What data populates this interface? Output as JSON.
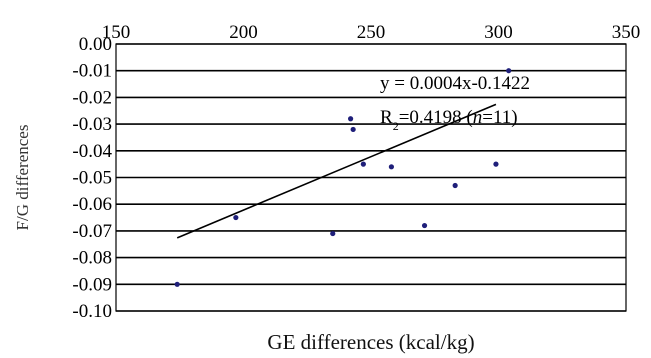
{
  "chart_data": {
    "type": "scatter",
    "xlabel": "GE differences (kcal/kg)",
    "ylabel": "F/G differences",
    "xlim": [
      150,
      350
    ],
    "ylim": [
      -0.1,
      0.0
    ],
    "x_ticks": [
      "150",
      "200",
      "250",
      "300",
      "350"
    ],
    "y_ticks": [
      "0.00",
      "-0.01",
      "-0.02",
      "-0.03",
      "-0.04",
      "-0.05",
      "-0.06",
      "-0.07",
      "-0.08",
      "-0.09",
      "-0.10"
    ],
    "grid": "horizontal",
    "x_axis_position": "top",
    "marker_color": "#1f1f7a",
    "points": [
      {
        "x": 174,
        "y": -0.09
      },
      {
        "x": 197,
        "y": -0.065
      },
      {
        "x": 235,
        "y": -0.071
      },
      {
        "x": 242,
        "y": -0.028
      },
      {
        "x": 243,
        "y": -0.032
      },
      {
        "x": 247,
        "y": -0.045
      },
      {
        "x": 258,
        "y": -0.046
      },
      {
        "x": 271,
        "y": -0.068
      },
      {
        "x": 283,
        "y": -0.053
      },
      {
        "x": 299,
        "y": -0.045
      },
      {
        "x": 304,
        "y": -0.01
      }
    ],
    "trendline": {
      "x_start": 174,
      "x_end": 299,
      "equation": "y = 0.0004x-0.1422",
      "r2_prefix": "R",
      "r2_sub": "2",
      "r2_value": "=0.4198 (",
      "r2_n": "n",
      "r2_count": "=11)"
    }
  }
}
